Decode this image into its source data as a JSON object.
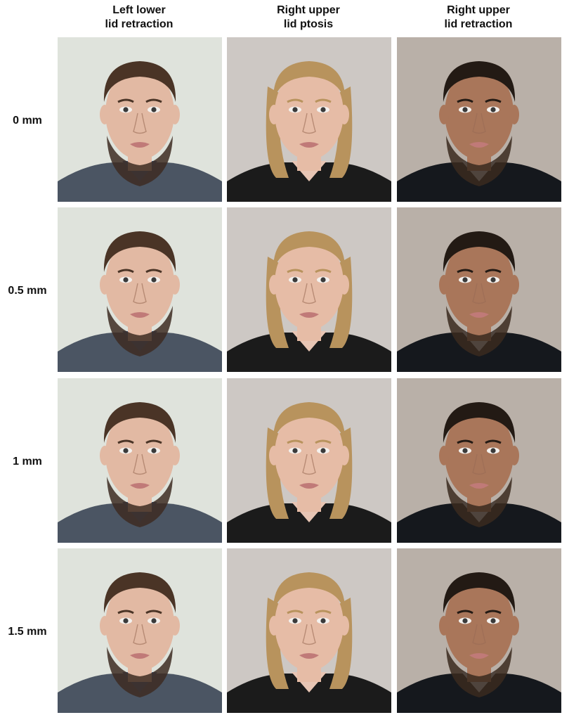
{
  "columns": [
    {
      "label": "Left lower\nlid retraction"
    },
    {
      "label": "Right upper\nlid ptosis"
    },
    {
      "label": "Right upper\nlid retraction"
    }
  ],
  "rows": [
    {
      "label": "0 mm"
    },
    {
      "label": "0.5 mm"
    },
    {
      "label": "1 mm"
    },
    {
      "label": "1.5 mm"
    }
  ],
  "subjects": [
    {
      "name": "subject-a",
      "bg": "#dfe3dc",
      "skin": "#e2b9a3",
      "hair": "#4a3426",
      "beard": "#3d2c22",
      "shirt": "#4b5563",
      "collar": "#3b5b86"
    },
    {
      "name": "subject-b",
      "bg": "#cdc8c4",
      "skin": "#e6bca6",
      "hair": "#b8935d",
      "beard": "none",
      "shirt": "#1b1b1b",
      "collar": "#e7c5b4"
    },
    {
      "name": "subject-c",
      "bg": "#b9b0a8",
      "skin": "#a9765a",
      "hair": "#231a14",
      "beard": "#3a2a1f",
      "shirt": "#15181d",
      "collar": "#c9d6e6"
    }
  ]
}
